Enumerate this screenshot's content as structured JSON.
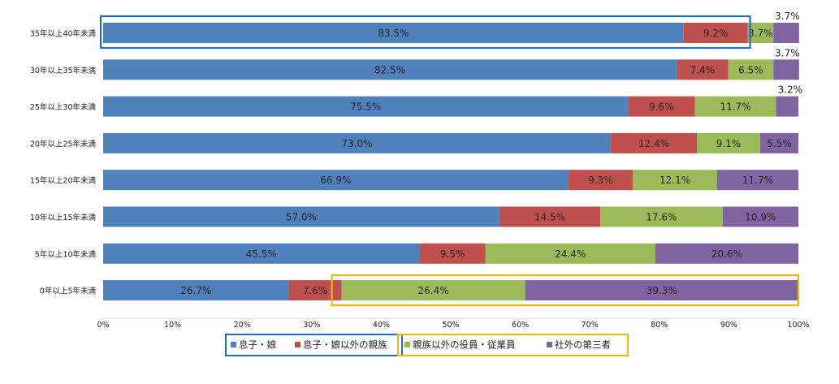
{
  "chart_data": {
    "type": "bar",
    "orientation": "horizontal",
    "stacked": true,
    "percent_stacked": true,
    "categories": [
      "35年以上40年未満",
      "30年以上35年未満",
      "25年以上30年未満",
      "20年以上25年未満",
      "15年以上20年未満",
      "10年以上15年未満",
      "5年以上10年未満",
      "0年以上5年未満"
    ],
    "series": [
      {
        "name": "息子・娘",
        "color": "#4F81BD",
        "values": [
          83.5,
          82.5,
          75.5,
          73.0,
          66.9,
          57.0,
          45.5,
          26.7
        ]
      },
      {
        "name": "息子・娘以外の親族",
        "color": "#C0504D",
        "values": [
          9.2,
          7.4,
          9.6,
          12.4,
          9.3,
          14.5,
          9.5,
          7.6
        ]
      },
      {
        "name": "親族以外の役員・従業員",
        "color": "#9BBB59",
        "values": [
          3.7,
          6.5,
          11.7,
          9.1,
          12.1,
          17.6,
          24.4,
          26.4
        ]
      },
      {
        "name": "社外の第三者",
        "color": "#8064A2",
        "values": [
          3.7,
          3.7,
          3.2,
          5.5,
          11.7,
          10.9,
          20.6,
          39.3
        ]
      }
    ],
    "data_labels": [
      [
        "83.5%",
        "9.2%",
        "3.7%",
        "3.7%"
      ],
      [
        "82.5%",
        "7.4%",
        "6.5%",
        "3.7%"
      ],
      [
        "75.5%",
        "9.6%",
        "11.7%",
        "3.2%"
      ],
      [
        "73.0%",
        "12.4%",
        "9.1%",
        "5.5%"
      ],
      [
        "66.9%",
        "9.3%",
        "12.1%",
        "11.7%"
      ],
      [
        "57.0%",
        "14.5%",
        "17.6%",
        "10.9%"
      ],
      [
        "45.5%",
        "9.5%",
        "24.4%",
        "20.6%"
      ],
      [
        "26.7%",
        "7.6%",
        "26.4%",
        "39.3%"
      ]
    ],
    "x_ticks": [
      "0%",
      "10%",
      "20%",
      "30%",
      "40%",
      "50%",
      "60%",
      "70%",
      "80%",
      "90%",
      "100%"
    ],
    "xlim": [
      0,
      100
    ],
    "grid": false,
    "legend_position": "bottom",
    "highlights": [
      {
        "color": "#1F6FC5",
        "description": "first row, first two segments"
      },
      {
        "color": "#F2B705",
        "description": "last row, last two segments"
      }
    ]
  }
}
